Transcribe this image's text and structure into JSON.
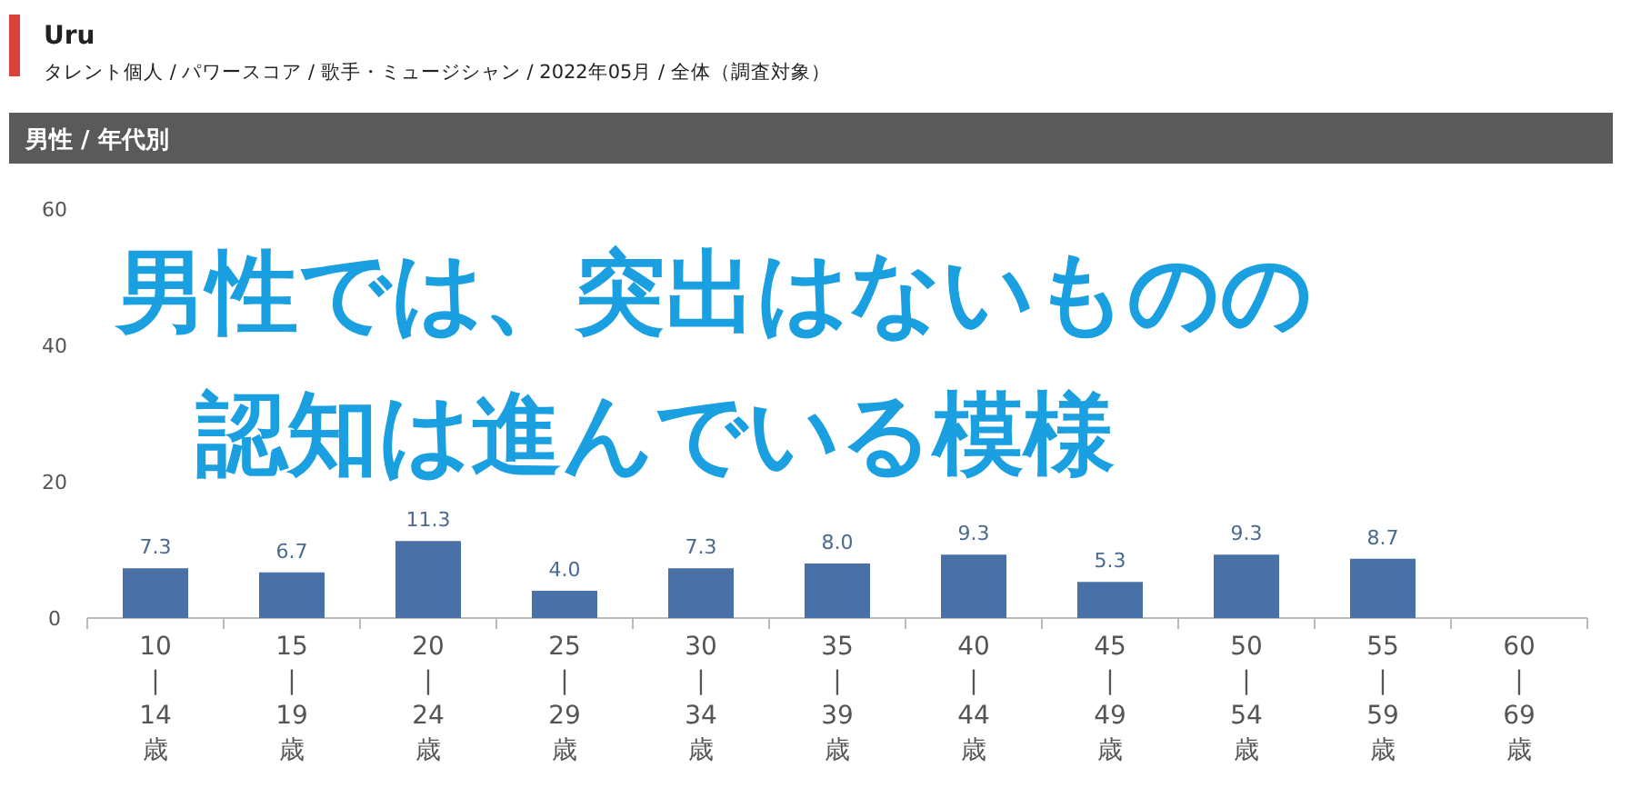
{
  "chart_data": {
    "type": "bar",
    "title": "Uru",
    "subtitle": "タレント個人 / パワースコア / 歌手・ミュージシャン / 2022年05月 / 全体（調査対象）",
    "categories": [
      "10\n|\n14\n歳",
      "15\n|\n19\n歳",
      "20\n|\n24\n歳",
      "25\n|\n29\n歳",
      "30\n|\n34\n歳",
      "35\n|\n39\n歳",
      "40\n|\n44\n歳",
      "45\n|\n49\n歳",
      "50\n|\n54\n歳",
      "55\n|\n59\n歳",
      "60\n|\n69\n歳"
    ],
    "values": [
      7.3,
      6.7,
      11.3,
      4.0,
      7.3,
      8.0,
      9.3,
      5.3,
      9.3,
      8.7,
      null
    ],
    "value_labels": [
      "7.3",
      "6.7",
      "11.3",
      "4.0",
      "7.3",
      "8.0",
      "9.3",
      "5.3",
      "9.3",
      "8.7",
      null
    ],
    "color": "#4a70a8",
    "ylim": [
      0,
      60
    ],
    "yticks": [
      0,
      20,
      40,
      60
    ],
    "annotations": [
      "男性 / 年代別",
      "男性では、突出はないものの",
      "認知は進んでいる模様"
    ]
  }
}
